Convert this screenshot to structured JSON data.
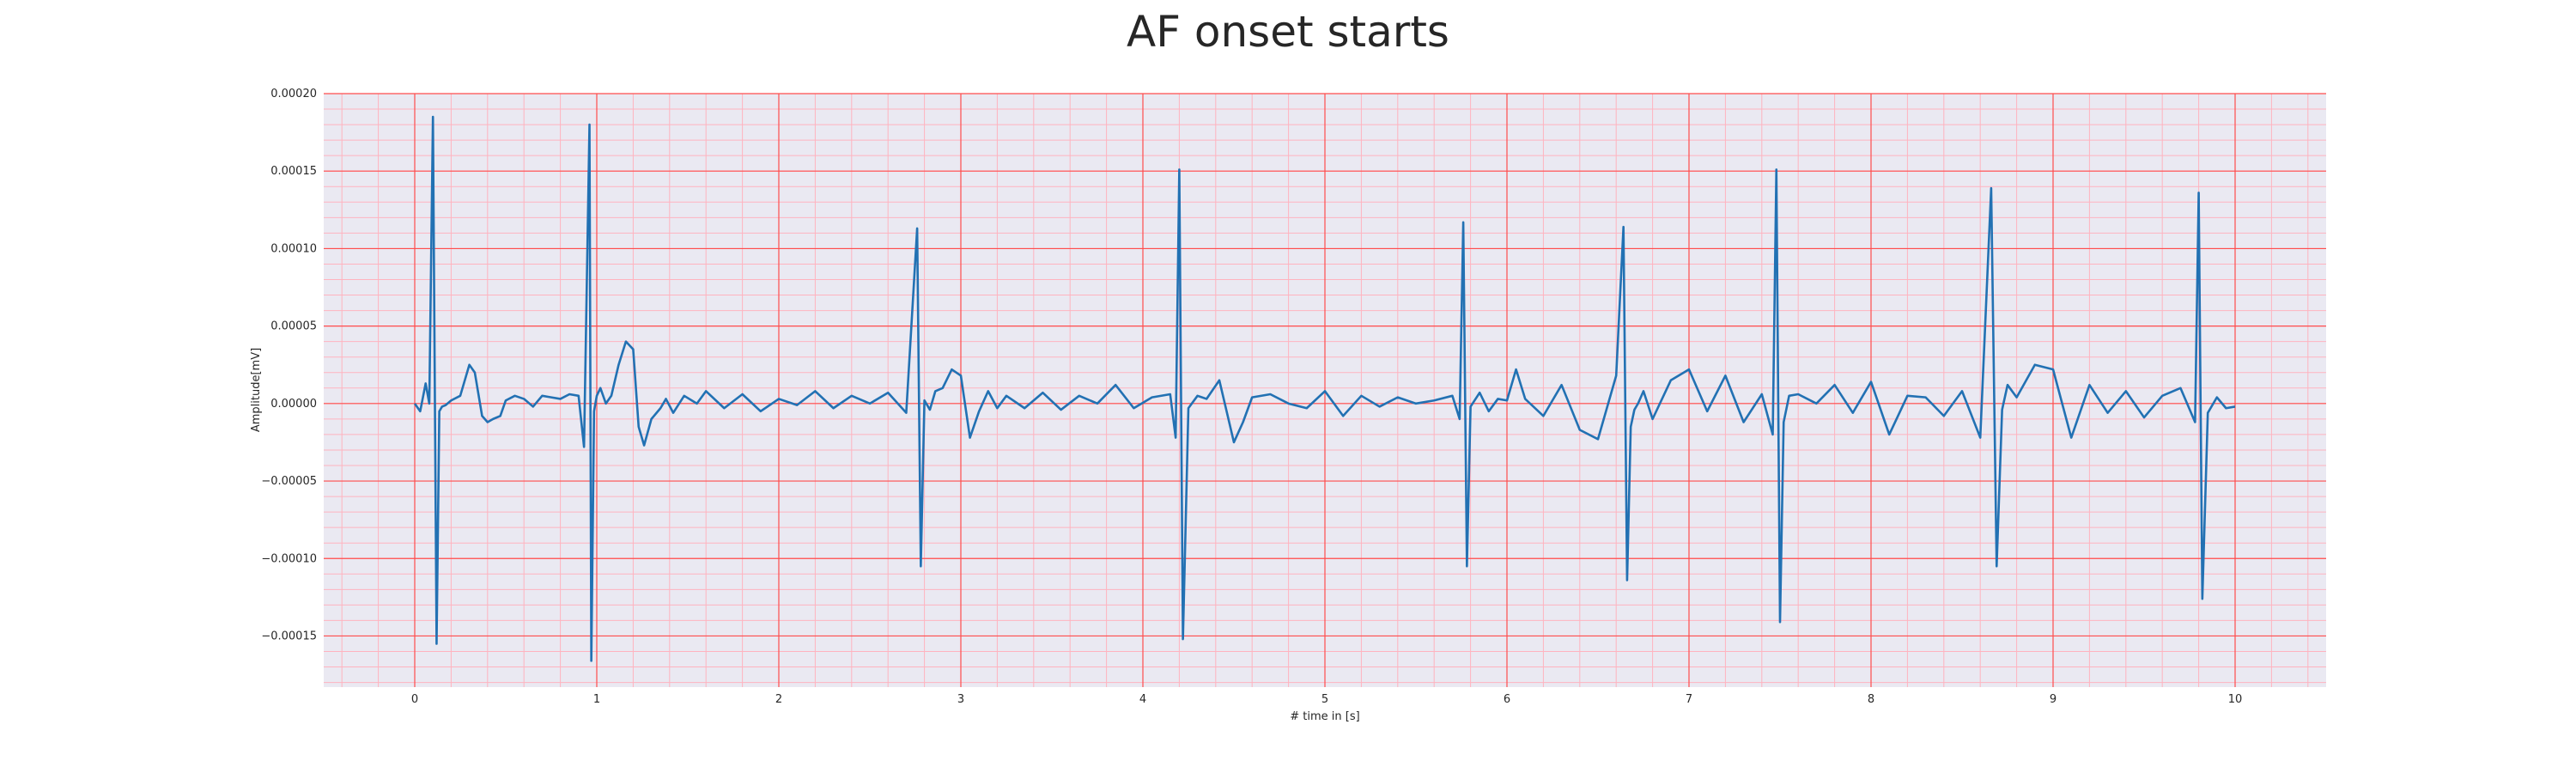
{
  "chart_data": {
    "type": "line",
    "title": "AF onset starts",
    "xlabel": "# time in [s]",
    "ylabel": "Amplitude[mV]",
    "xlim": [
      -0.5,
      10.5
    ],
    "ylim": [
      -0.000183,
      0.0002
    ],
    "x_ticks": [
      0,
      1,
      2,
      3,
      4,
      5,
      6,
      7,
      8,
      9,
      10
    ],
    "x_tick_labels": [
      "0",
      "1",
      "2",
      "3",
      "4",
      "5",
      "6",
      "7",
      "8",
      "9",
      "10"
    ],
    "y_ticks": [
      -0.00015,
      -0.0001,
      -5e-05,
      0,
      5e-05,
      0.0001,
      0.00015,
      0.0002
    ],
    "y_tick_labels": [
      "−0.00015",
      "−0.00010",
      "−0.00005",
      "0.00000",
      "0.00005",
      "0.00010",
      "0.00015",
      "0.00020"
    ],
    "grid": true,
    "minor_grid": true,
    "grid_color": "#ff4d4d",
    "minor_grid_color": "#ffb3bf",
    "plot_background": "#eae9f2",
    "line_color": "#2271b3",
    "series": [
      {
        "x": [
          0,
          0.03,
          0.06,
          0.08,
          0.1,
          0.12,
          0.135,
          0.15,
          0.17,
          0.2,
          0.25,
          0.3,
          0.33,
          0.37,
          0.4,
          0.43,
          0.47,
          0.5,
          0.55,
          0.6,
          0.65,
          0.7,
          0.75,
          0.8,
          0.85,
          0.9,
          0.93,
          0.96,
          0.97,
          0.985,
          1.0,
          1.02,
          1.05,
          1.08,
          1.12,
          1.16,
          1.2,
          1.23,
          1.26,
          1.3,
          1.35,
          1.38,
          1.42,
          1.48,
          1.55,
          1.6,
          1.7,
          1.8,
          1.9,
          2.0,
          2.1,
          2.2,
          2.3,
          2.4,
          2.5,
          2.6,
          2.7,
          2.76,
          2.78,
          2.8,
          2.83,
          2.86,
          2.9,
          2.95,
          3.0,
          3.05,
          3.1,
          3.15,
          3.2,
          3.25,
          3.35,
          3.45,
          3.55,
          3.65,
          3.75,
          3.85,
          3.95,
          4.05,
          4.15,
          4.18,
          4.2,
          4.22,
          4.25,
          4.3,
          4.35,
          4.42,
          4.5,
          4.55,
          4.6,
          4.7,
          4.8,
          4.9,
          5.0,
          5.1,
          5.2,
          5.3,
          5.4,
          5.5,
          5.6,
          5.7,
          5.74,
          5.76,
          5.78,
          5.8,
          5.85,
          5.9,
          5.95,
          6.0,
          6.05,
          6.1,
          6.2,
          6.3,
          6.4,
          6.5,
          6.6,
          6.64,
          6.66,
          6.68,
          6.7,
          6.72,
          6.75,
          6.8,
          6.9,
          7.0,
          7.1,
          7.2,
          7.3,
          7.4,
          7.46,
          7.48,
          7.5,
          7.52,
          7.55,
          7.6,
          7.7,
          7.8,
          7.9,
          8.0,
          8.1,
          8.2,
          8.3,
          8.4,
          8.5,
          8.6,
          8.66,
          8.69,
          8.72,
          8.75,
          8.8,
          8.9,
          9.0,
          9.1,
          9.2,
          9.3,
          9.4,
          9.5,
          9.6,
          9.7,
          9.78,
          9.8,
          9.82,
          9.85,
          9.9,
          9.95,
          10.0
        ],
        "y": [
          0,
          -5e-06,
          1.3e-05,
          0,
          0.000185,
          -0.000155,
          -5e-06,
          -2e-06,
          -1e-06,
          2e-06,
          5e-06,
          2.5e-05,
          2e-05,
          -8e-06,
          -1.2e-05,
          -1e-05,
          -8e-06,
          2e-06,
          5e-06,
          3e-06,
          -2e-06,
          5e-06,
          4e-06,
          3e-06,
          6e-06,
          5e-06,
          -2.8e-05,
          0.00018,
          -0.000166,
          -5e-06,
          5e-06,
          1e-05,
          0,
          5e-06,
          2.5e-05,
          4e-05,
          3.5e-05,
          -1.5e-05,
          -2.7e-05,
          -1e-05,
          -3e-06,
          3e-06,
          -6e-06,
          5e-06,
          0,
          8e-06,
          -3e-06,
          6e-06,
          -5e-06,
          3e-06,
          -1e-06,
          8e-06,
          -3e-06,
          5e-06,
          0,
          7e-06,
          -6e-06,
          0.000113,
          -0.000105,
          2e-06,
          -4e-06,
          8e-06,
          1e-05,
          2.2e-05,
          1.8e-05,
          -2.2e-05,
          -5e-06,
          8e-06,
          -3e-06,
          5e-06,
          -3e-06,
          7e-06,
          -4e-06,
          5e-06,
          0,
          1.2e-05,
          -3e-06,
          4e-06,
          6e-06,
          -2.2e-05,
          0.000151,
          -0.000152,
          -3e-06,
          5e-06,
          3e-06,
          1.5e-05,
          -2.5e-05,
          -1.2e-05,
          4e-06,
          6e-06,
          0,
          -3e-06,
          8e-06,
          -8e-06,
          5e-06,
          -2e-06,
          4e-06,
          0,
          2e-06,
          5e-06,
          -1e-05,
          0.000117,
          -0.000105,
          -2e-06,
          7e-06,
          -5e-06,
          3e-06,
          2e-06,
          2.2e-05,
          3e-06,
          -8e-06,
          1.2e-05,
          -1.7e-05,
          -2.3e-05,
          1.8e-05,
          0.000114,
          -0.000114,
          -1.5e-05,
          -4e-06,
          0,
          8e-06,
          -1e-05,
          1.5e-05,
          2.2e-05,
          -5e-06,
          1.8e-05,
          -1.2e-05,
          6e-06,
          -2e-05,
          0.000151,
          -0.000141,
          -1.2e-05,
          5e-06,
          6e-06,
          0,
          1.2e-05,
          -6e-06,
          1.4e-05,
          -2e-05,
          5e-06,
          4e-06,
          -8e-06,
          8e-06,
          -2.2e-05,
          0.000139,
          -0.000105,
          -4e-06,
          1.2e-05,
          4e-06,
          2.5e-05,
          2.2e-05,
          -2.2e-05,
          1.2e-05,
          -6e-06,
          8e-06,
          -9e-06,
          5e-06,
          1e-05,
          -1.2e-05,
          0.000136,
          -0.000126,
          -6e-06,
          4e-06,
          -3e-06,
          -2e-06
        ]
      }
    ]
  }
}
